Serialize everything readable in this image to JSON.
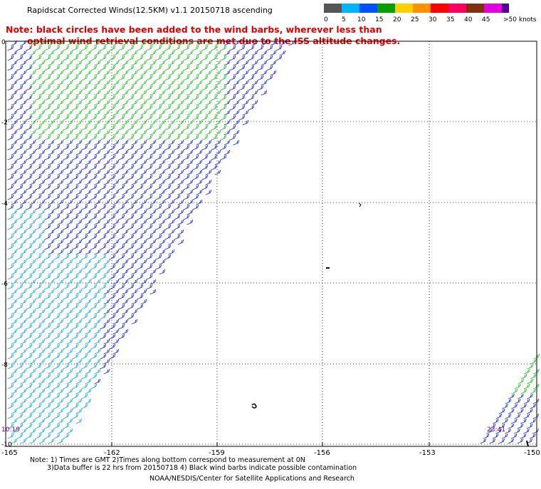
{
  "title": "Rapidscat Corrected Winds(12.5KM) v1.1 20150718 ascending",
  "note_line1": "Note: black circles have been added to the wind barbs, wherever less than",
  "note_line2": "optimal wind retrieval conditions are met due to the ISS altitude changes.",
  "colorbar": {
    "labels": [
      "0",
      "5",
      "10",
      "15",
      "20",
      "25",
      "30",
      "35",
      "40",
      "45",
      ">50 knots"
    ],
    "colors": [
      "#000000",
      "#00b4ff",
      "#0000ff",
      "#00c000",
      "#ffd000",
      "#ff8000",
      "#ff0000",
      "#ff0050",
      "#804020",
      "#d000d0",
      "#6000a0"
    ]
  },
  "axes": {
    "lon_ticks": [
      "-165",
      "-162",
      "-159",
      "-156",
      "-153",
      "-150"
    ],
    "lat_ticks": [
      "0",
      "-2",
      "-4",
      "-6",
      "-8",
      "-10"
    ]
  },
  "pass_times": [
    "10:19",
    "23:41"
  ],
  "footnote_line1": "Note: 1) Times are GMT 2)Times along bottom correspond to measurement at 0N",
  "footnote_line2": "3)Data buffer is 22 hrs from 20150718 4) Black wind barbs indicate possible contamination",
  "credit": "NOAA/NESDIS/Center for Satellite Applications and Research"
}
